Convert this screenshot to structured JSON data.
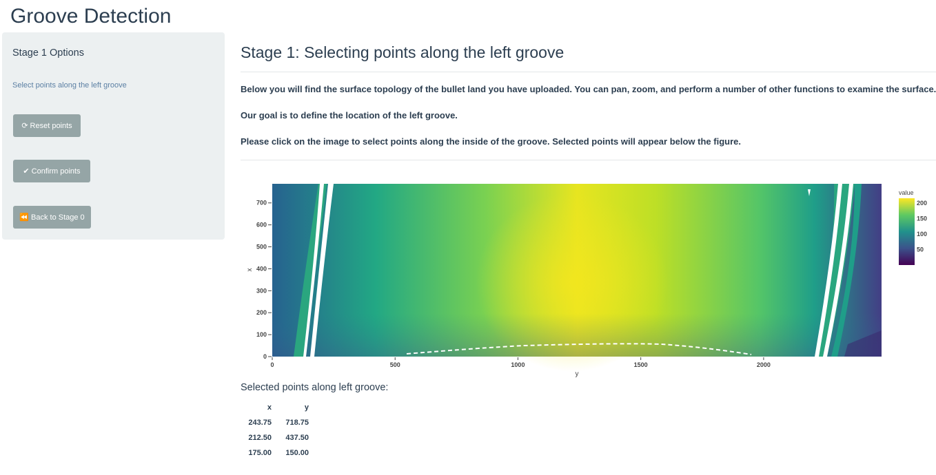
{
  "app": {
    "title": "Groove Detection"
  },
  "sidebar": {
    "title": "Stage 1 Options",
    "description": "Select points along the left groove",
    "buttons": [
      {
        "icon": "refresh-icon",
        "label": "Reset points"
      },
      {
        "icon": "check-icon",
        "label": "Confirm points"
      },
      {
        "icon": "backward-icon",
        "label": "Back to Stage 0"
      }
    ]
  },
  "main": {
    "title": "Stage 1: Selecting points along the left groove",
    "paragraphs": [
      "Below you will find the surface topology of the bullet land you have uploaded. You can pan, zoom, and perform a number of other functions to examine the surface.",
      "Our goal is to define the location of the left groove.",
      "Please click on the image to select points along the inside of the groove. Selected points will appear below the figure."
    ]
  },
  "chart_data": {
    "type": "heatmap",
    "title": "",
    "xlabel": "y",
    "ylabel": "x",
    "xlim": [
      0,
      2480
    ],
    "ylim": [
      0,
      787
    ],
    "x_ticks": [
      0,
      500,
      1000,
      1500,
      2000
    ],
    "y_ticks": [
      0,
      100,
      200,
      300,
      400,
      500,
      600,
      700
    ],
    "colorscale": "viridis",
    "colorbar": {
      "title": "value",
      "ticks": [
        50,
        100,
        150,
        200
      ],
      "range": [
        0,
        215
      ]
    }
  },
  "selected": {
    "title": "Selected points along left groove:",
    "columns": [
      "x",
      "y"
    ],
    "rows": [
      [
        "243.75",
        "718.75"
      ],
      [
        "212.50",
        "437.50"
      ],
      [
        "175.00",
        "150.00"
      ]
    ]
  },
  "colors": {
    "primary": "#2c3e50",
    "button": "#95a5a6",
    "sidebar_bg": "#ecf0f1",
    "link": "#5b7fa3"
  }
}
